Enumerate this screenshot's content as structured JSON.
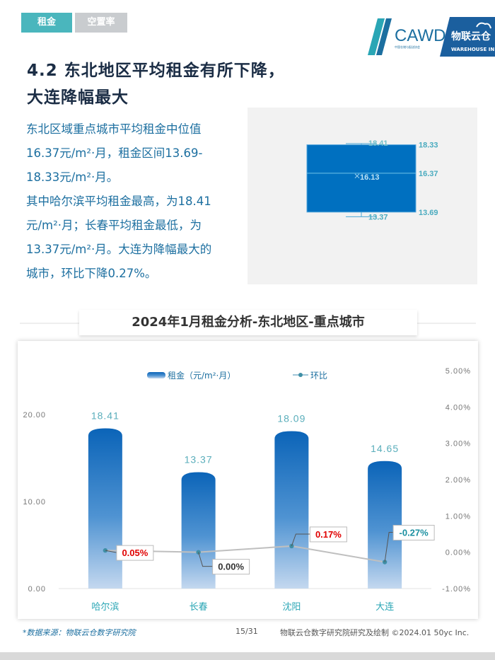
{
  "tabs": [
    {
      "label": "租金",
      "active": true
    },
    {
      "label": "空置率",
      "active": false
    }
  ],
  "logo": {
    "text": "CAWD",
    "brand": "物联云仓",
    "sub": "WAREHOUSE IN CLOUD"
  },
  "heading": {
    "line1": "4.2 东北地区平均租金有所下降，",
    "line2": "大连降幅最大"
  },
  "paragraph": [
    "东北区域重点城市平均租金中位值",
    "16.37元/m²·月，租金区间13.69-",
    "18.33元/m²·月。",
    "其中哈尔滨平均租金最高，为18.41",
    "元/m²·月；长春平均租金最低，为",
    "13.37元/m²·月。大连为降幅最大的",
    "城市，环比下降0.27%。"
  ],
  "boxplot": {
    "max": "18.41",
    "q3": "18.33",
    "mean": "16.13",
    "median": "16.37",
    "q1": "13.69",
    "min": "13.37",
    "values": {
      "max": 18.41,
      "q3": 18.33,
      "median": 16.37,
      "mean": 16.13,
      "q1": 13.69,
      "min": 13.37
    },
    "range": [
      13.0,
      18.8
    ],
    "fill": "#0070c0"
  },
  "chart_title": "2024年1月租金分析-东北地区-重点城市",
  "chart_data": {
    "type": "bar",
    "categories": [
      "哈尔滨",
      "长春",
      "沈阳",
      "大连"
    ],
    "series": [
      {
        "name": "租金（元/m²·月）",
        "type": "bar",
        "values": [
          18.41,
          13.37,
          18.09,
          14.65
        ],
        "labels": [
          "18.41",
          "13.37",
          "18.09",
          "14.65"
        ],
        "color": "#1e6fbf"
      },
      {
        "name": "环比",
        "type": "line",
        "axis": "right",
        "values": [
          0.05,
          0.0,
          0.17,
          -0.27
        ],
        "labels": [
          "0.05%",
          "0.00%",
          "0.17%",
          "-0.27%"
        ],
        "color": "#bfbfbf"
      }
    ],
    "y_left": {
      "min": 0,
      "max": 20,
      "ticks": [
        "0.00",
        "10.00",
        "20.00"
      ],
      "tick_values": [
        0,
        10,
        20
      ]
    },
    "y_right": {
      "min": -1,
      "max": 5,
      "ticks": [
        "-1.00%",
        "0.00%",
        "1.00%",
        "2.00%",
        "3.00%",
        "4.00%",
        "5.00%"
      ],
      "tick_values": [
        -1,
        0,
        1,
        2,
        3,
        4,
        5
      ]
    },
    "legend": "top",
    "label_colors": {
      "positive": "#e00000",
      "negative": "#1a8fa0",
      "zero": "#333333"
    }
  },
  "footer": {
    "source": "*数据来源：物联云仓数字研究院",
    "page": "15/31",
    "copyright": "物联云仓数字研究院研究及绘制   ©2024.01 50yc Inc."
  }
}
